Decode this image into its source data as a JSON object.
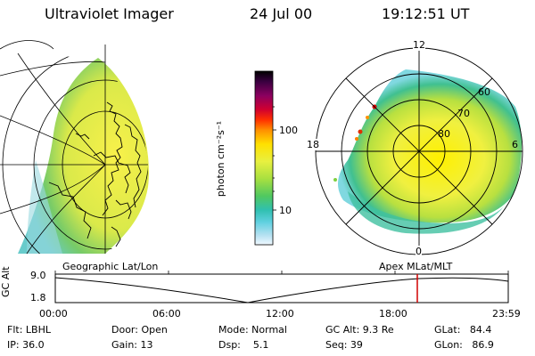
{
  "header": {
    "instrument": "Ultraviolet Imager",
    "date": "24 Jul 00",
    "time": "19:12:51 UT"
  },
  "colorbar": {
    "unit_label": "photon cm⁻²s⁻¹",
    "ticks": [
      "100",
      "10"
    ],
    "colors": [
      "#000000",
      "#3a0040",
      "#7a0060",
      "#c00040",
      "#e00000",
      "#ff6000",
      "#ffb000",
      "#ffe000",
      "#f0f040",
      "#c0e040",
      "#80d040",
      "#40c080",
      "#40d0d0",
      "#a0e0f0",
      "#e8f4f8"
    ]
  },
  "panels": {
    "left_label": "Geographic Lat/Lon",
    "right_label": "Apex MLat/MLT",
    "polar_labels": {
      "top": "12",
      "left": "18",
      "right": "6",
      "bottom": "0"
    },
    "ring_labels": [
      "60",
      "70",
      "80"
    ]
  },
  "timeline": {
    "axis_title": "GC Alt",
    "y_ticks": [
      "9.0",
      "1.8"
    ],
    "x_ticks": [
      "00:00",
      "06:00",
      "12:00",
      "18:00",
      "23:59"
    ],
    "marker_color": "#d00000"
  },
  "status": {
    "flt": "Flt: LBHL",
    "ip": "IP: 36.0",
    "door": "Door: Open",
    "gain": "Gain: 13",
    "mode": "Mode: Normal",
    "dsp": "Dsp:    5.1",
    "gcalt": "GC Alt: 9.3 Re",
    "seq": "Seq: 39",
    "glat": "GLat:   84.4",
    "glon": "GLon:   86.9"
  }
}
